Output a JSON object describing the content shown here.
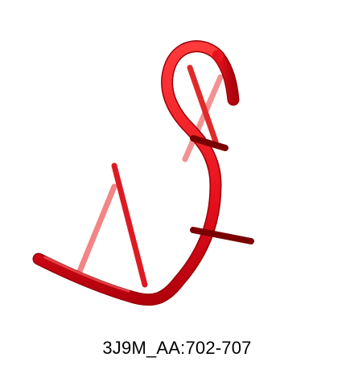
{
  "caption": "3J9M_AA:702-707",
  "colors": {
    "backbone": "#e8101c",
    "backbone_shadow": "#9a0008",
    "base_light": "#f06a6a",
    "base_mid": "#dd2a2a",
    "base_dark": "#7a0000",
    "background": "#ffffff"
  }
}
